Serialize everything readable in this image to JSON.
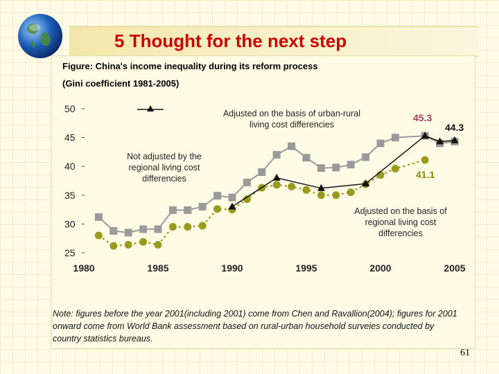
{
  "slide": {
    "title": "5 Thought for the next step",
    "page_number": "61"
  },
  "figure": {
    "caption_line1": "Figure: China's income inequality during its reform process",
    "caption_line2": "(Gini coefficient 1981-2005)"
  },
  "annotations": {
    "urban_rural": "Adjusted on the basis of urban-rural living cost differencies",
    "not_adjusted": "Not adjusted by the regional living cost differencies",
    "regional": "Adjusted on the basis of regional living cost differencies",
    "label_453": "45.3",
    "label_443": "44.3",
    "label_411": "41.1"
  },
  "note": "Note: figures before the year 2001(including 2001) come from Chen and Ravallion(2004); figures for 2001 onward come from World Bank assessment based on rural-urban household surveies conducted by country statistics bureaus.",
  "colors": {
    "title": "#cc0000",
    "not_adjusted": "#9a9a9a",
    "regional": "#9a9a1e",
    "urban_rural": "#111111",
    "label_453": "#a04060",
    "label_443": "#111111",
    "label_411": "#8a8a10"
  },
  "chart_data": {
    "type": "line",
    "x_ticks": [
      1980,
      1985,
      1990,
      1995,
      2000,
      2005
    ],
    "y_ticks": [
      25,
      30,
      35,
      40,
      45,
      50
    ],
    "xlim": [
      1980,
      2005
    ],
    "ylim": [
      25,
      50
    ],
    "series": [
      {
        "key": "not_adjusted",
        "marker": "square",
        "x": [
          1981,
          1982,
          1983,
          1984,
          1985,
          1986,
          1987,
          1988,
          1989,
          1990,
          1991,
          1992,
          1993,
          1994,
          1995,
          1996,
          1997,
          1998,
          1999,
          2000,
          2001,
          2003,
          2004,
          2005
        ],
        "y": [
          31.2,
          28.8,
          28.5,
          29.1,
          29.1,
          32.4,
          32.4,
          33.0,
          34.9,
          34.6,
          37.2,
          39.0,
          42.0,
          43.5,
          41.5,
          39.7,
          39.8,
          40.3,
          41.6,
          44.0,
          45.0,
          45.3,
          44.0,
          44.3
        ]
      },
      {
        "key": "regional",
        "marker": "circle",
        "x": [
          1981,
          1982,
          1983,
          1984,
          1985,
          1986,
          1987,
          1988,
          1989,
          1990,
          1991,
          1992,
          1993,
          1994,
          1995,
          1996,
          1997,
          1998,
          1999,
          2000,
          2001,
          2003
        ],
        "y": [
          28.0,
          26.2,
          26.4,
          26.9,
          26.4,
          29.5,
          29.5,
          29.7,
          32.6,
          32.5,
          34.3,
          36.3,
          36.8,
          36.5,
          35.9,
          35.0,
          35.0,
          35.5,
          36.9,
          38.5,
          39.6,
          41.1
        ]
      },
      {
        "key": "urban_rural",
        "marker": "triangle",
        "x": [
          1990,
          1993,
          1996,
          1999,
          2003,
          2004,
          2005
        ],
        "y": [
          33.0,
          38.0,
          36.2,
          37.0,
          45.3,
          44.3,
          44.5
        ]
      }
    ]
  }
}
